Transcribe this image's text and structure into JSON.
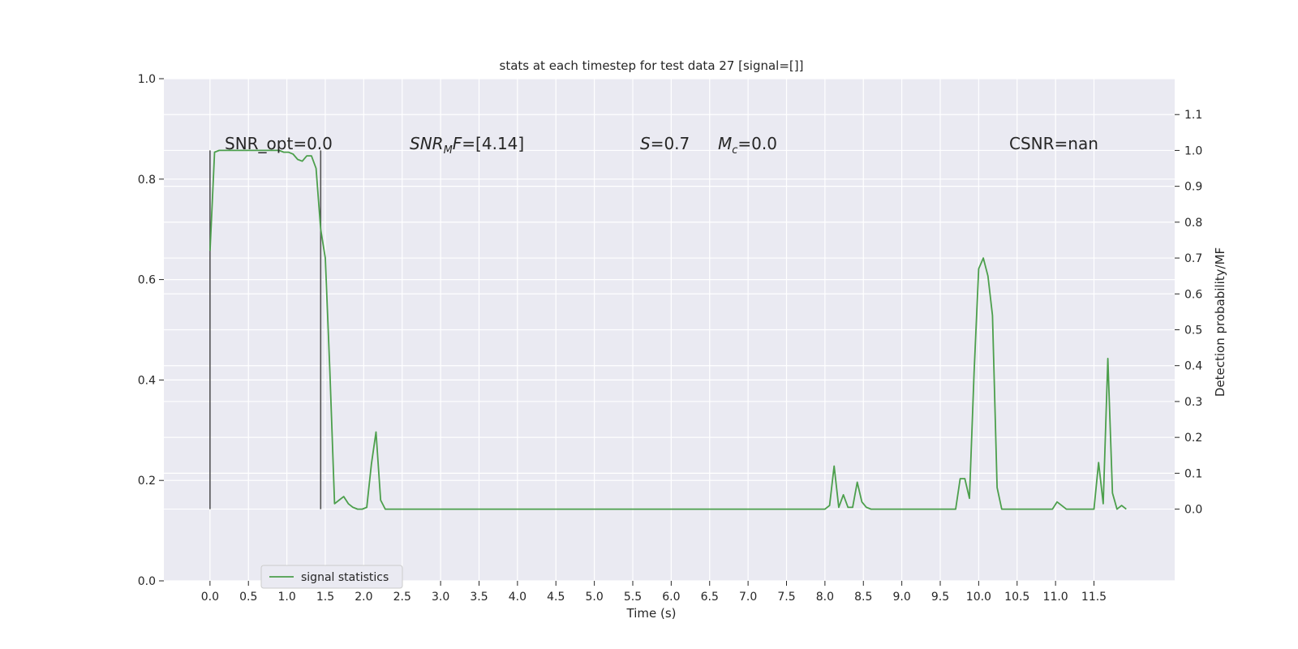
{
  "chart_data": {
    "type": "line",
    "title": "stats at each timestep for test data 27 [signal=[]]",
    "xlabel": "Time (s)",
    "ylabel_left": "",
    "ylabel_right": "Detection probability/MF",
    "xlim": [
      -0.6,
      12.55
    ],
    "ylim_left": [
      0.0,
      1.0
    ],
    "ylim_right": [
      -0.2,
      1.2
    ],
    "xticks": [
      "0.0",
      "0.5",
      "1.0",
      "1.5",
      "2.0",
      "2.5",
      "3.0",
      "3.5",
      "4.0",
      "4.5",
      "5.0",
      "5.5",
      "6.0",
      "6.5",
      "7.0",
      "7.5",
      "8.0",
      "8.5",
      "9.0",
      "9.5",
      "10.0",
      "10.5",
      "11.0",
      "11.5"
    ],
    "yticks_left": [
      "0.0",
      "0.2",
      "0.4",
      "0.6",
      "0.8",
      "1.0"
    ],
    "yticks_right": [
      "0.0",
      "0.1",
      "0.2",
      "0.3",
      "0.4",
      "0.5",
      "0.6",
      "0.7",
      "0.8",
      "0.9",
      "1.0",
      "1.1"
    ],
    "grid": true,
    "background": "#eaeaf2",
    "legend": {
      "placement": "lower-left",
      "entries": [
        "signal statistics"
      ]
    },
    "annotations": [
      {
        "text": "SNR_opt=0.0"
      },
      {
        "text": "SNR_MF=[4.14]",
        "math_base": "SNR",
        "math_sub": "M",
        "math_tail": "F=[4.14]"
      },
      {
        "text": "S=0.7",
        "math_base": "S",
        "math_tail": "=0.7"
      },
      {
        "text": "M_c=0.0",
        "math_base": "M",
        "math_sub": "c",
        "math_tail": "=0.0"
      },
      {
        "text": "CSNR=nan"
      }
    ],
    "vlines": [
      {
        "x": 0.0,
        "y_range": [
          0.0,
          1.0
        ],
        "color": "#555555"
      },
      {
        "x": 1.44,
        "y_range": [
          0.0,
          1.0
        ],
        "color": "#555555"
      }
    ],
    "series": [
      {
        "name": "signal statistics",
        "color": "#4c9f4c",
        "axis": "right",
        "x": [
          0.0,
          0.06,
          0.12,
          0.18,
          0.24,
          0.3,
          0.36,
          0.42,
          0.48,
          0.54,
          0.6,
          0.66,
          0.72,
          0.78,
          0.84,
          0.9,
          0.96,
          1.02,
          1.08,
          1.14,
          1.2,
          1.26,
          1.32,
          1.38,
          1.44,
          1.5,
          1.56,
          1.62,
          1.68,
          1.74,
          1.8,
          1.86,
          1.92,
          1.98,
          2.04,
          2.1,
          2.16,
          2.22,
          2.28,
          2.34,
          2.4,
          2.5,
          3.0,
          4.0,
          5.0,
          6.0,
          7.0,
          7.5,
          8.0,
          8.06,
          8.12,
          8.18,
          8.24,
          8.3,
          8.36,
          8.42,
          8.48,
          8.54,
          8.6,
          8.7,
          8.8,
          8.9,
          9.0,
          9.06,
          9.12,
          9.2,
          9.4,
          9.5,
          9.56,
          9.6,
          9.7,
          9.76,
          9.82,
          9.88,
          9.94,
          10.0,
          10.06,
          10.12,
          10.18,
          10.24,
          10.3,
          10.36,
          10.42,
          10.5,
          10.6,
          10.7,
          10.8,
          10.9,
          10.96,
          11.02,
          11.08,
          11.14,
          11.2,
          11.3,
          11.4,
          11.5,
          11.56,
          11.62,
          11.68,
          11.74,
          11.8,
          11.86,
          11.92
        ],
        "y": [
          0.72,
          0.995,
          1.0,
          1.0,
          1.0,
          1.0,
          1.0,
          1.0,
          1.0,
          1.0,
          1.0,
          1.0,
          1.0,
          1.0,
          1.0,
          1.0,
          0.995,
          0.995,
          0.99,
          0.975,
          0.97,
          0.985,
          0.985,
          0.95,
          0.78,
          0.7,
          0.38,
          0.015,
          0.025,
          0.035,
          0.015,
          0.005,
          0.0,
          0.0,
          0.005,
          0.125,
          0.215,
          0.025,
          0.0,
          0.0,
          0.0,
          0.0,
          0.0,
          0.0,
          0.0,
          0.0,
          0.0,
          0.0,
          0.0,
          0.01,
          0.12,
          0.005,
          0.04,
          0.005,
          0.005,
          0.075,
          0.02,
          0.005,
          0.0,
          0.0,
          0.0,
          0.0,
          0.0,
          0.0,
          0.0,
          0.0,
          0.0,
          0.0,
          0.0,
          0.0,
          0.0,
          0.085,
          0.085,
          0.03,
          0.38,
          0.67,
          0.7,
          0.65,
          0.54,
          0.06,
          0.0,
          0.0,
          0.0,
          0.0,
          0.0,
          0.0,
          0.0,
          0.0,
          0.0,
          0.02,
          0.01,
          0.0,
          0.0,
          0.0,
          0.0,
          0.0,
          0.13,
          0.015,
          0.42,
          0.045,
          0.0,
          0.01,
          0.0
        ]
      }
    ]
  }
}
